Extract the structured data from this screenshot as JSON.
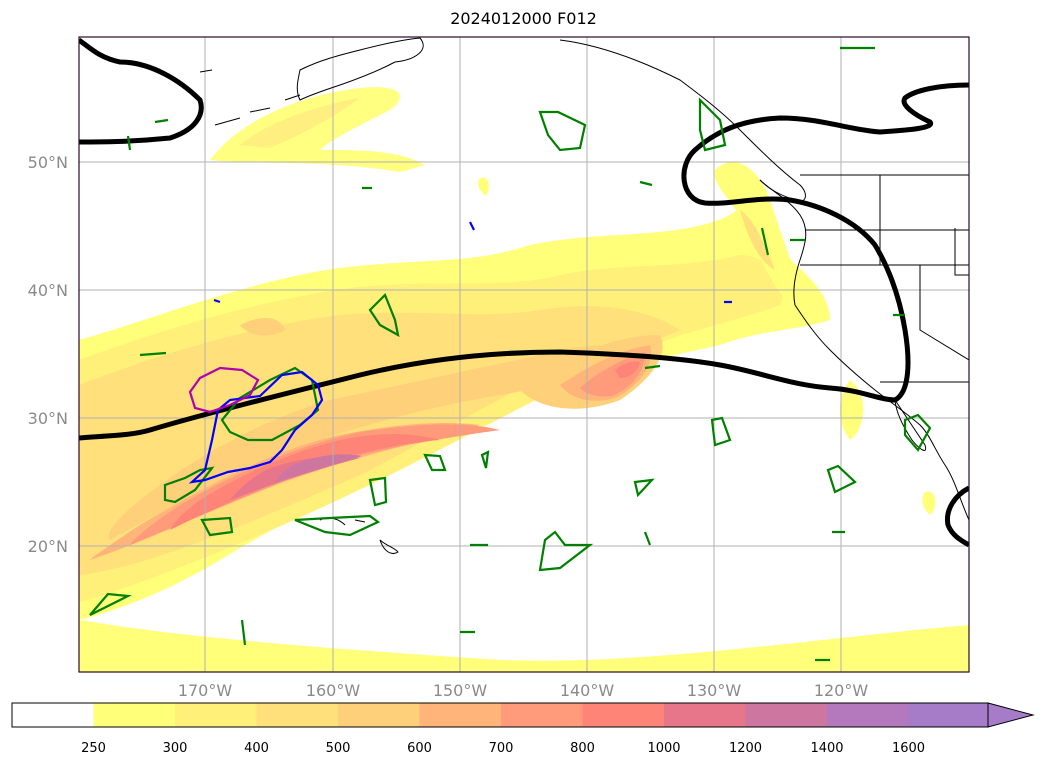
{
  "title": "2024012000 F012",
  "latitude_labels": [
    "50°N",
    "40°N",
    "30°N",
    "20°N"
  ],
  "longitude_labels": [
    "170°W",
    "160°W",
    "150°W",
    "140°W",
    "130°W",
    "120°W"
  ],
  "colorbar": {
    "ticks": [
      "250",
      "300",
      "400",
      "500",
      "600",
      "700",
      "800",
      "1000",
      "1200",
      "1400",
      "1600"
    ],
    "colors": [
      "#ffffff",
      "#ffff7a",
      "#fff07a",
      "#ffe07a",
      "#ffd07a",
      "#ffb47a",
      "#ff9a7a",
      "#ff8478",
      "#e8768a",
      "#cc76a0",
      "#b478bc",
      "#a67cc8"
    ]
  },
  "colors": {
    "contour_black": "#000000",
    "contour_green": "#008000",
    "contour_blue": "#0000ff",
    "contour_magenta": "#b000b0",
    "grid": "#b0b0b0",
    "coast": "#000000"
  }
}
